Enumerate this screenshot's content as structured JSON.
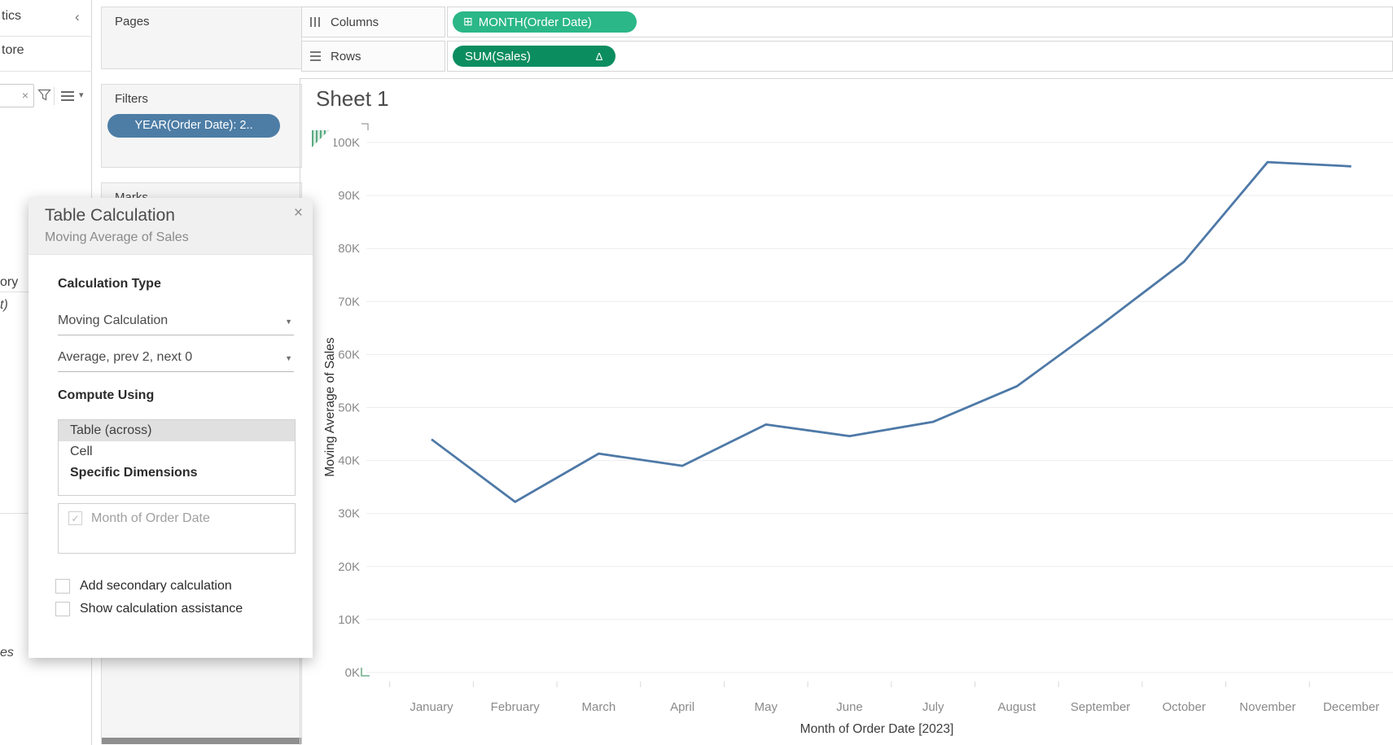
{
  "data_pane": {
    "tab_partial": "tics",
    "chevron": "‹",
    "datasource_partial": "tore",
    "search_clear": "×",
    "field_partial_1": "ory",
    "field_partial_2": "t)",
    "field_partial_3": "es"
  },
  "cards": {
    "pages_label": "Pages",
    "filters_label": "Filters",
    "filter_pill": "YEAR(Order Date): 2..",
    "marks_label": "Marks"
  },
  "shelves": {
    "columns_label": "Columns",
    "columns_pill": "MONTH(Order Date)",
    "columns_pill_icon": "⊞",
    "rows_label": "Rows",
    "rows_pill": "SUM(Sales)",
    "rows_pill_icon": "∆"
  },
  "sheet": {
    "title": "Sheet 1"
  },
  "dialog": {
    "title": "Table Calculation",
    "subtitle": "Moving Average of Sales",
    "close_icon": "×",
    "calculation_type_label": "Calculation Type",
    "calculation_type_value": "Moving Calculation",
    "aggregation_value": "Average, prev 2, next 0",
    "dropdown_caret": "▼",
    "compute_using_label": "Compute Using",
    "compute_options": [
      "Table (across)",
      "Cell",
      "Specific Dimensions"
    ],
    "selected_option": "Table (across)",
    "bold_option": "Specific Dimensions",
    "dimension_check_glyph": "✓",
    "dimension_label": "Month of Order Date",
    "add_secondary_label": "Add secondary calculation",
    "show_assistance_label": "Show calculation assistance"
  },
  "chart_data": {
    "type": "line",
    "title": "Sheet 1",
    "categories": [
      "January",
      "February",
      "March",
      "April",
      "May",
      "June",
      "July",
      "August",
      "September",
      "October",
      "November",
      "December"
    ],
    "values_k": [
      44.0,
      32.2,
      41.3,
      39.0,
      46.8,
      44.6,
      47.3,
      54.0,
      65.5,
      77.5,
      96.3,
      95.5
    ],
    "series_name": "Moving Average of Sales",
    "xlabel": "Month of Order Date [2023]",
    "ylabel": "Moving Average of Sales",
    "y_ticks": [
      "0K",
      "10K",
      "20K",
      "30K",
      "40K",
      "50K",
      "60K",
      "70K",
      "80K",
      "90K",
      "100K"
    ],
    "ylim_k": [
      0,
      100
    ],
    "grid": "horizontal",
    "legend": "none",
    "line_color": "#4e79a7",
    "tick_color": "#8a8a8a",
    "grid_color": "#ececec"
  }
}
